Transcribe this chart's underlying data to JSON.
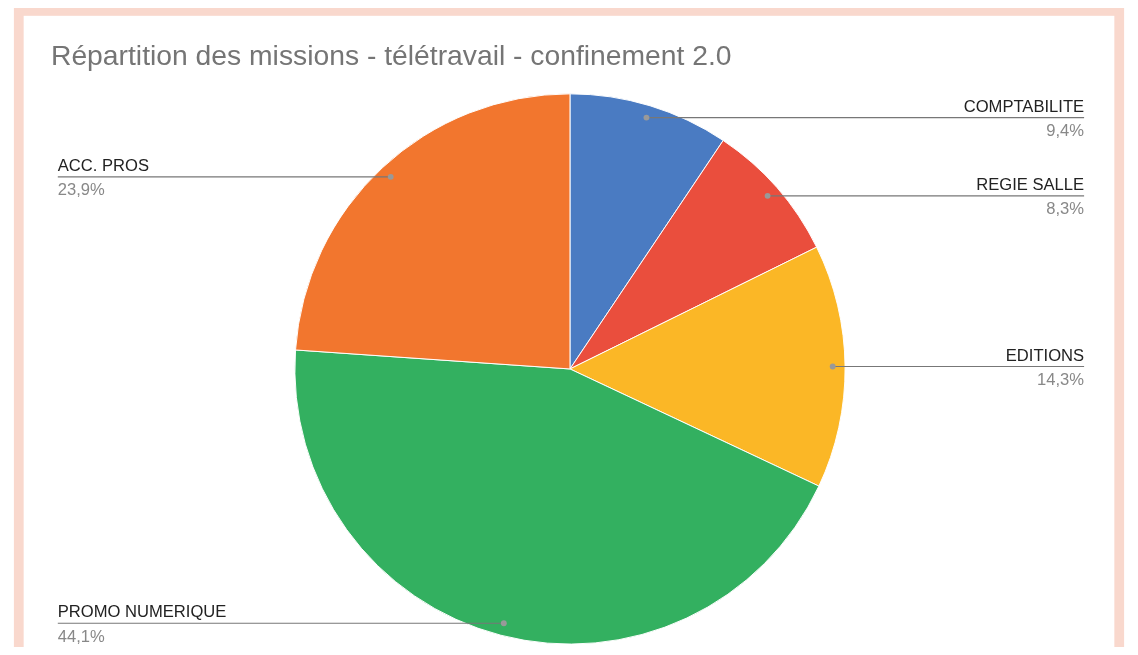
{
  "chart_data": {
    "type": "pie",
    "title": "Répartition des missions - télétravail - confinement 2.0",
    "categories": [
      "COMPTABILITE",
      "REGIE SALLE",
      "EDITIONS",
      "PROMO NUMERIQUE",
      "ACC. PROS"
    ],
    "values": [
      9.4,
      8.3,
      14.3,
      44.1,
      23.9
    ],
    "colors": [
      "#4a7bc2",
      "#ea4e3d",
      "#fbb726",
      "#33b060",
      "#f2762e"
    ],
    "value_labels": [
      "9,4%",
      "8,3%",
      "14,3%",
      "44,1%",
      "23,9%"
    ]
  }
}
